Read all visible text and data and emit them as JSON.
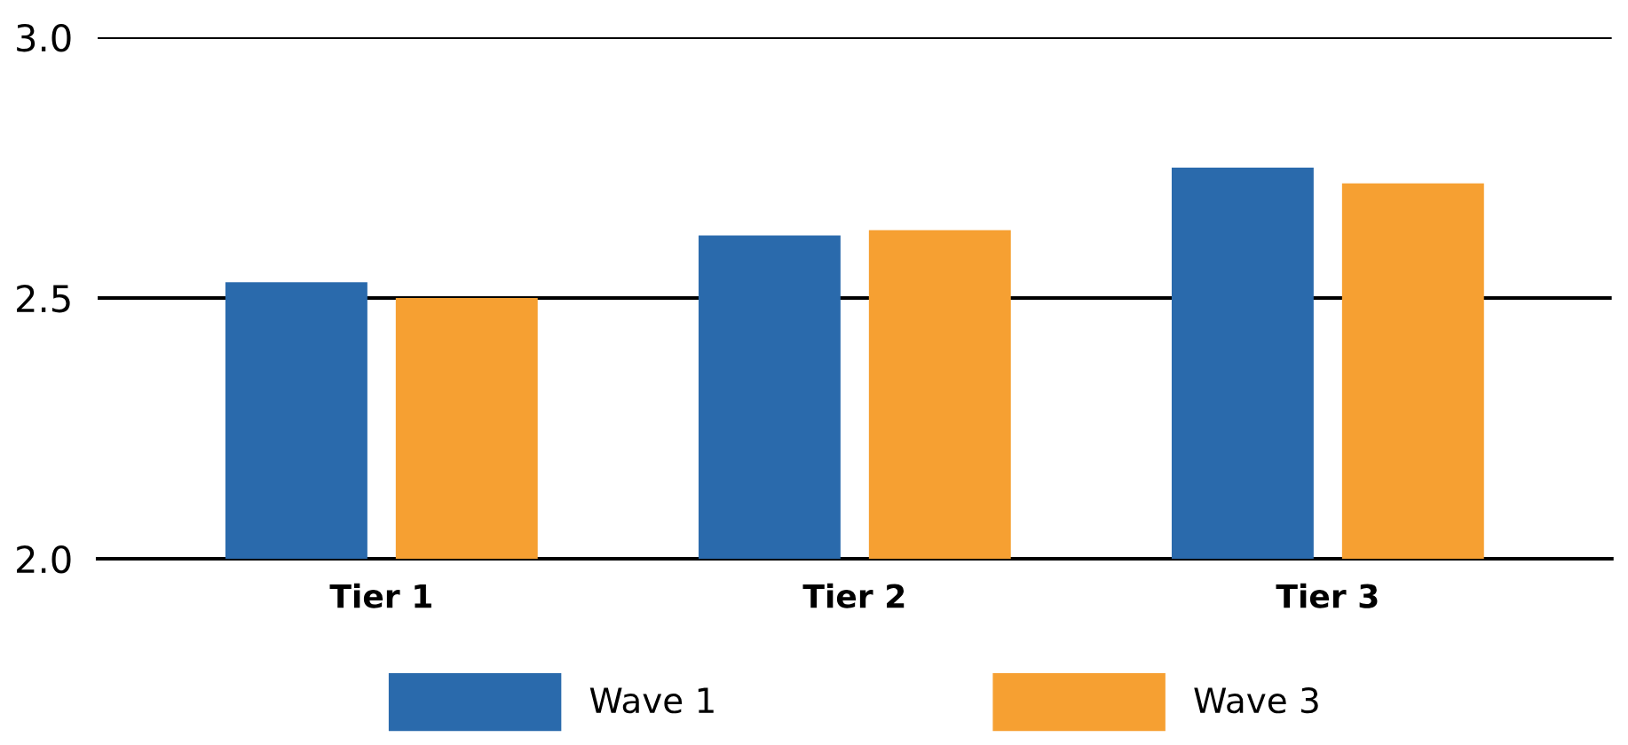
{
  "chart_data": {
    "type": "bar",
    "categories": [
      "Tier 1",
      "Tier 2",
      "Tier 3"
    ],
    "series": [
      {
        "name": "Wave 1",
        "color": "#2a6aac",
        "values": [
          2.53,
          2.62,
          2.75
        ]
      },
      {
        "name": "Wave 3",
        "color": "#f6a032",
        "values": [
          2.5,
          2.63,
          2.72
        ]
      }
    ],
    "ylim": [
      2.0,
      3.0
    ],
    "yticks": [
      {
        "value": 2.0,
        "label": "2.0"
      },
      {
        "value": 2.5,
        "label": "2.5"
      },
      {
        "value": 3.0,
        "label": "3.0"
      }
    ],
    "grid": "y",
    "legend": "bottom"
  }
}
